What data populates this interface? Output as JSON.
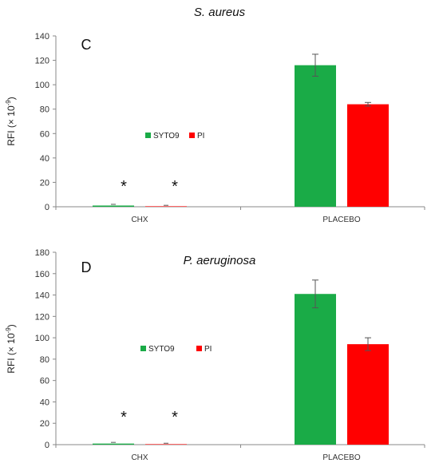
{
  "chart_data": [
    {
      "type": "bar",
      "panel_letter": "C",
      "title": "S. aureus",
      "ylabel": "RFI (× 10",
      "ylabel_sup": "-9",
      "ylabel_end": ")",
      "categories": [
        "CHX",
        "PLACEBO"
      ],
      "ylim": [
        0,
        140
      ],
      "yticks": [
        0,
        20,
        40,
        60,
        80,
        100,
        120,
        140
      ],
      "legend_position": "center-left",
      "series": [
        {
          "name": "SYTO9",
          "color": "#1aab47",
          "values": [
            1,
            116
          ],
          "errors": [
            0.5,
            9
          ]
        },
        {
          "name": "PI",
          "color": "#ff0000",
          "values": [
            0.2,
            84
          ],
          "errors": [
            0.1,
            1.5
          ]
        }
      ],
      "annotations": [
        "*",
        "*"
      ]
    },
    {
      "type": "bar",
      "panel_letter": "D",
      "title": "P. aeruginosa",
      "ylabel": "RFI (× 10",
      "ylabel_sup": "-9",
      "ylabel_end": ")",
      "categories": [
        "CHX",
        "PLACEBO"
      ],
      "ylim": [
        0,
        180
      ],
      "yticks": [
        0,
        20,
        40,
        60,
        80,
        100,
        120,
        140,
        160,
        180
      ],
      "legend_position": "center-left",
      "series": [
        {
          "name": "SYTO9",
          "color": "#1aab47",
          "values": [
            1,
            141
          ],
          "errors": [
            0.5,
            13
          ]
        },
        {
          "name": "PI",
          "color": "#ff0000",
          "values": [
            0.2,
            94
          ],
          "errors": [
            0.1,
            6
          ]
        }
      ],
      "annotations": [
        "*",
        "*"
      ]
    }
  ]
}
